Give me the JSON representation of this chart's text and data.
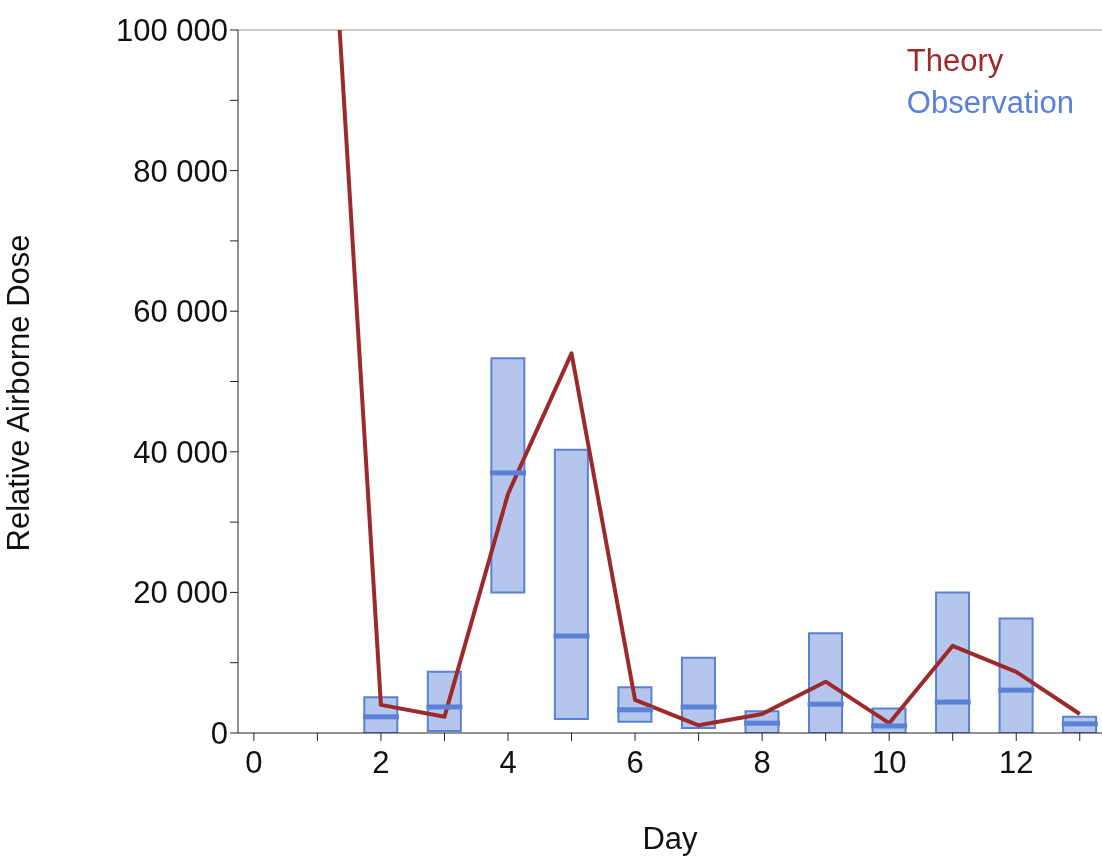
{
  "chart_data": {
    "type": "box",
    "xlabel": "Day",
    "ylabel": "Relative Airborne Dose",
    "xlim": [
      -0.25,
      13.35
    ],
    "ylim": [
      0,
      100000
    ],
    "xticks": [
      0,
      {
        "value": 1,
        "label": null
      },
      2,
      {
        "value": 3,
        "label": null
      },
      4,
      {
        "value": 5,
        "label": null
      },
      6,
      {
        "value": 7,
        "label": null
      },
      8,
      {
        "value": 9,
        "label": null
      },
      10,
      {
        "value": 11,
        "label": null
      },
      12,
      {
        "value": 13,
        "label": null
      }
    ],
    "yticks": [
      {
        "value": 0,
        "label": "0"
      },
      {
        "value": 10000,
        "label": null
      },
      {
        "value": 20000,
        "label": "20 000"
      },
      {
        "value": 30000,
        "label": null
      },
      {
        "value": 40000,
        "label": "40 000"
      },
      {
        "value": 50000,
        "label": null
      },
      {
        "value": 60000,
        "label": "60 000"
      },
      {
        "value": 70000,
        "label": null
      },
      {
        "value": 80000,
        "label": "80 000"
      },
      {
        "value": 90000,
        "label": null
      },
      {
        "value": 100000,
        "label": "100 000"
      }
    ],
    "legend": "top right",
    "grid": false,
    "series": [
      {
        "name": "Theory",
        "type": "line",
        "color": "#9c2a2a",
        "marker": "none",
        "line_style": "solid",
        "x": [
          1.35,
          2,
          3,
          4,
          5,
          6,
          7,
          8,
          9,
          10,
          11,
          12,
          13
        ],
        "values": [
          100000,
          4000,
          2300,
          34000,
          54000,
          4700,
          1100,
          2700,
          7300,
          1400,
          12400,
          8700,
          2700
        ]
      },
      {
        "name": "Observation",
        "color": "#5a80d8",
        "x": [
          2,
          3,
          4,
          5,
          6,
          7,
          8,
          9,
          10,
          11,
          12,
          13
        ],
        "boxes": [
          {
            "low": 0,
            "q1": 0,
            "median": 2300,
            "q3": 5100,
            "high": 5100
          },
          {
            "low": 300,
            "q1": 300,
            "median": 3700,
            "q3": 8700,
            "high": 8700
          },
          {
            "low": 20000,
            "q1": 20000,
            "median": 37000,
            "q3": 53300,
            "high": 53300
          },
          {
            "low": 2000,
            "q1": 2000,
            "median": 13800,
            "q3": 40300,
            "high": 40300
          },
          {
            "low": 1600,
            "q1": 1600,
            "median": 3300,
            "q3": 6500,
            "high": 6500
          },
          {
            "low": 700,
            "q1": 700,
            "median": 3700,
            "q3": 10700,
            "high": 10700
          },
          {
            "low": 0,
            "q1": 0,
            "median": 1400,
            "q3": 3100,
            "high": 3100
          },
          {
            "low": 0,
            "q1": 0,
            "median": 4100,
            "q3": 14200,
            "high": 14200
          },
          {
            "low": 0,
            "q1": 0,
            "median": 1000,
            "q3": 3500,
            "high": 3500
          },
          {
            "low": 0,
            "q1": 0,
            "median": 4400,
            "q3": 20000,
            "high": 20000
          },
          {
            "low": 0,
            "q1": 0,
            "median": 6100,
            "q3": 16300,
            "high": 16300
          },
          {
            "low": 0,
            "q1": 0,
            "median": 1300,
            "q3": 2300,
            "high": 2300
          }
        ]
      }
    ]
  }
}
